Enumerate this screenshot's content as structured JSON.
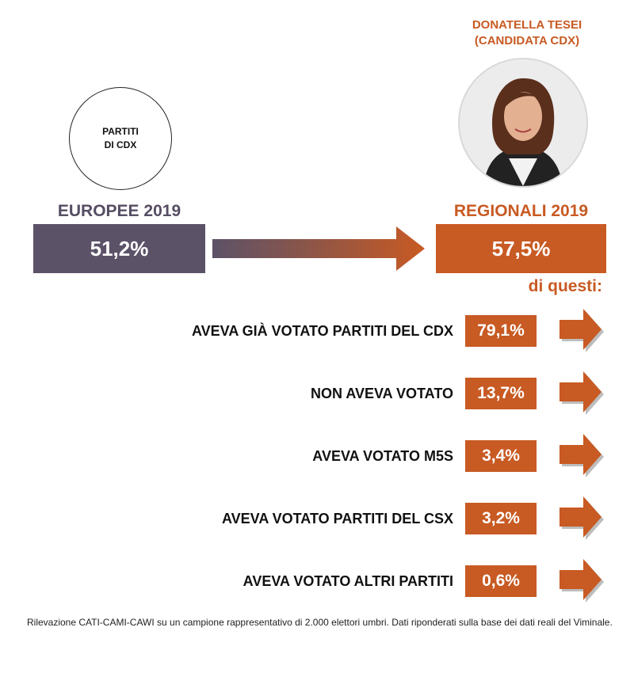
{
  "candidate": {
    "name": "DONATELLA TESEI",
    "role": "(CANDIDATA CDX)"
  },
  "left_circle": {
    "label": "PARTITI\nDI CDX"
  },
  "colors": {
    "purple": "#5c5268",
    "orange": "#c85a23"
  },
  "chart_data": {
    "type": "table",
    "from": {
      "label": "EUROPEE 2019",
      "value": 51.2,
      "display": "51,2%"
    },
    "to": {
      "label": "REGIONALI 2019",
      "value": 57.5,
      "display": "57,5%"
    },
    "breakdown_title": "di questi:",
    "rows": [
      {
        "label": "AVEVA GIÀ VOTATO PARTITI DEL CDX",
        "value": 79.1,
        "display": "79,1%"
      },
      {
        "label": "NON AVEVA VOTATO",
        "value": 13.7,
        "display": "13,7%"
      },
      {
        "label": "AVEVA VOTATO M5S",
        "value": 3.4,
        "display": "3,4%"
      },
      {
        "label": "AVEVA VOTATO PARTITI DEL CSX",
        "value": 3.2,
        "display": "3,2%"
      },
      {
        "label": "AVEVA VOTATO ALTRI PARTITI",
        "value": 0.6,
        "display": "0,6%"
      }
    ]
  },
  "footnote": "Rilevazione CATI-CAMI-CAWI su un campione rappresentativo di 2.000 elettori umbri. Dati riponderati sulla base dei dati reali del Viminale."
}
